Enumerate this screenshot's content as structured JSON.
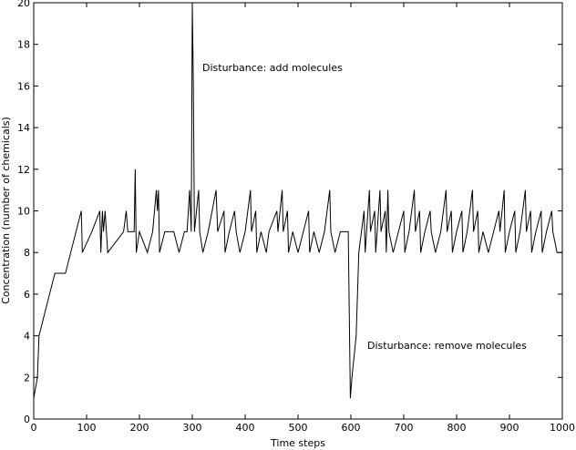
{
  "chart_data": {
    "type": "line",
    "xlabel": "Time steps",
    "ylabel": "Concentration (number of chemicals)",
    "annotations": [
      "Disturbance: add molecules",
      "Disturbance: remove molecules"
    ],
    "xlim": [
      0,
      1000
    ],
    "xticks": [
      0,
      100,
      200,
      300,
      400,
      500,
      600,
      700,
      800,
      900,
      1000
    ],
    "ylim": [
      0,
      20
    ],
    "yticks": [
      0,
      2,
      4,
      6,
      8,
      10,
      12,
      14,
      16,
      18,
      20
    ],
    "grid": false,
    "x": [
      0,
      7,
      10,
      30,
      40,
      60,
      70,
      90,
      92,
      110,
      125,
      127,
      130,
      132,
      135,
      140,
      170,
      175,
      178,
      190,
      192,
      194,
      200,
      215,
      225,
      232,
      234,
      236,
      238,
      248,
      265,
      275,
      285,
      290,
      295,
      298,
      300,
      302,
      304,
      312,
      314,
      320,
      330,
      345,
      348,
      360,
      362,
      370,
      380,
      383,
      390,
      400,
      410,
      412,
      420,
      422,
      430,
      440,
      445,
      460,
      462,
      470,
      472,
      480,
      482,
      490,
      500,
      510,
      520,
      522,
      530,
      540,
      550,
      560,
      562,
      570,
      580,
      595,
      599,
      602,
      610,
      615,
      620,
      625,
      627,
      635,
      637,
      645,
      647,
      655,
      657,
      665,
      667,
      670,
      672,
      680,
      690,
      700,
      702,
      710,
      720,
      722,
      730,
      732,
      740,
      750,
      752,
      760,
      770,
      780,
      782,
      790,
      792,
      800,
      810,
      812,
      820,
      830,
      832,
      840,
      842,
      850,
      860,
      870,
      880,
      882,
      890,
      892,
      900,
      910,
      912,
      920,
      930,
      932,
      940,
      942,
      950,
      960,
      962,
      970,
      980,
      982,
      990,
      1000
    ],
    "series": [
      {
        "color": "#000000",
        "values": [
          1,
          2,
          4,
          6,
          7,
          7,
          8,
          10,
          8,
          9,
          10,
          8,
          10,
          9,
          10,
          8,
          9,
          10,
          9,
          9,
          12,
          8,
          9,
          8,
          9,
          11,
          10,
          11,
          8,
          9,
          9,
          8,
          9,
          9,
          11,
          9,
          20,
          16,
          9,
          11,
          9,
          8,
          9,
          11,
          9,
          10,
          8,
          9,
          10,
          9,
          8,
          9,
          11,
          9,
          10,
          8,
          9,
          8,
          9,
          10,
          9,
          11,
          9,
          10,
          8,
          9,
          8,
          9,
          10,
          8,
          9,
          8,
          9,
          11,
          9,
          8,
          9,
          9,
          1,
          2,
          4,
          8,
          9,
          10,
          8,
          11,
          9,
          10,
          8,
          11,
          9,
          10,
          8,
          11,
          9,
          8,
          9,
          10,
          8,
          9,
          11,
          9,
          10,
          8,
          9,
          10,
          9,
          8,
          9,
          11,
          9,
          10,
          8,
          9,
          10,
          8,
          9,
          11,
          9,
          10,
          8,
          9,
          8,
          9,
          10,
          9,
          11,
          8,
          9,
          10,
          8,
          9,
          11,
          9,
          10,
          8,
          9,
          10,
          8,
          9,
          10,
          9,
          8,
          8
        ]
      }
    ]
  }
}
